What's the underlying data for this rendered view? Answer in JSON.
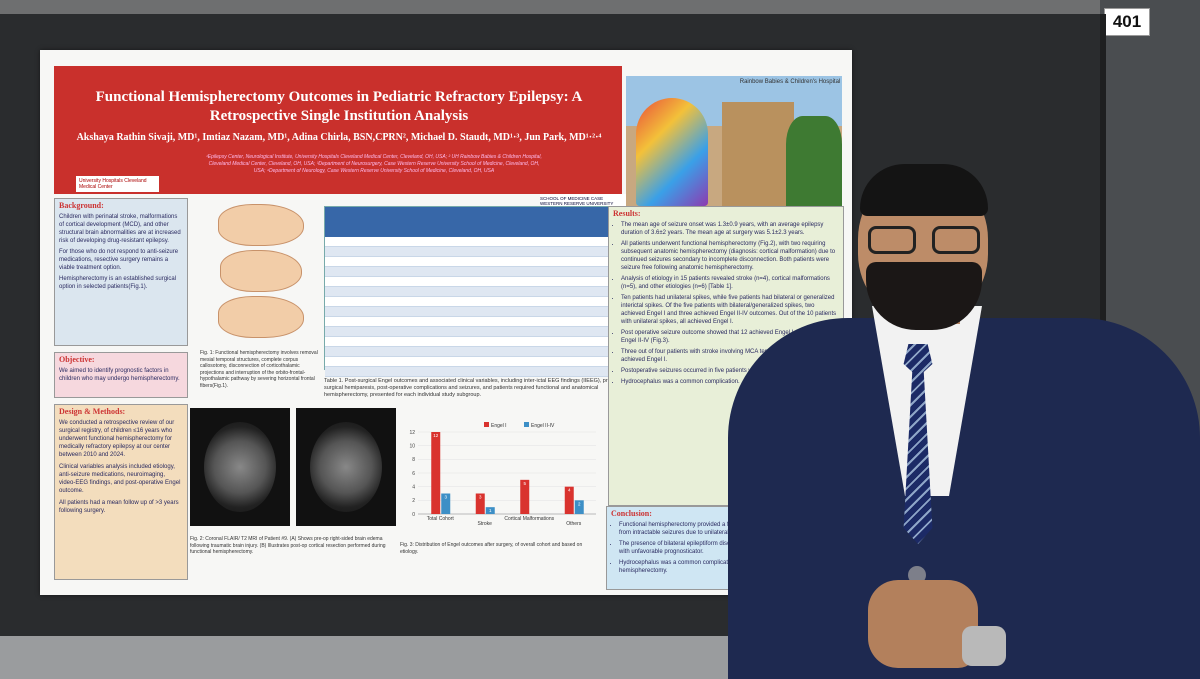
{
  "booth_number": "401",
  "poster": {
    "title": "Functional Hemispherectomy Outcomes in Pediatric Refractory Epilepsy: A Retrospective Single Institution Analysis",
    "authors": "Akshaya Rathin Sivaji, MD¹, Imtiaz Nazam, MD¹, Adina Chirla, BSN,CPRN², Michael D. Staudt, MD¹·³, Jun Park, MD¹·²·⁴",
    "affiliations": "¹Epilepsy Center, Neurological Institute, University Hospitals Cleveland Medical Center, Cleveland, OH, USA; ² UH Rainbow Babies & Children Hospital, Cleveland Medical Center, Cleveland, OH, USA; ³Department of Neurosurgery, Case Western Reserve University School of Medicine, Cleveland, OH, USA; ⁴Department of Neurology, Case Western Reserve University School of Medicine, Cleveland, OH, USA",
    "logo_left": "University Hospitals Cleveland Medical Center",
    "logo_right": "SCHOOL OF MEDICINE CASE WESTERN RESERVE UNIVERSITY",
    "hospital_logo": "Rainbow Babies & Children's Hospital",
    "background": {
      "heading": "Background:",
      "items": [
        "Children with perinatal stroke, malformations of cortical development (MCD), and other structural brain abnormalities are at increased risk of developing drug-resistant epilepsy.",
        "For those who do not respond to anti-seizure medications, resective surgery remains a viable treatment option.",
        "Hemispherectomy is an established surgical option in selected patients(Fig.1)."
      ]
    },
    "objective": {
      "heading": "Objective:",
      "items": [
        "We aimed to identify prognostic factors in children who may undergo hemispherectomy."
      ]
    },
    "design": {
      "heading": "Design & Methods:",
      "items": [
        "We conducted a retrospective review of our surgical registry, of children ≤16 years who underwent functional hemispherectomy for medically refractory epilepsy at our center between 2010 and 2024.",
        "Clinical variables analysis included etiology, anti-seizure medications, neuroimaging, video-EEG findings, and post-operative Engel outcome.",
        "All patients had a mean follow up of >3 years following surgery."
      ]
    },
    "fig1_caption": "Fig. 1: Functional hemispherectomy involves removal mesial temporal structures, complete corpus callosotomy, disconnection of corticothalamic projections and interruption of the orbito-frontal-hypothalamic pathway by severing horizontal frontal fibers(Fig.1).",
    "table_caption": "Table 1. Post-surgical Engel outcomes and associated clinical variables, including inter-ictal EEG findings (IIEEG), pre-surgical hemiparesis, post-operative complications and seizures, and patients required functional and anatomical hemispherectomy, presented for each individual study subgroup.",
    "fig2_caption": "Fig. 2: Coronal FLAIR/ T2 MRI of Patient #9. (A) Shows pre-op right-sided brain edema following traumatic brain injury. (B) Illustrates post-op cortical resection performed during functional hemispherectomy.",
    "fig3_caption": "Fig. 3: Distribution of Engel outcomes after surgery, of overall cohort and based on etiology.",
    "results": {
      "heading": "Results:",
      "items": [
        "The mean age of seizure onset was 1.3±0.9 years, with an average epilepsy duration of 3.6±2 years. The mean age at surgery was 5.1±2.3 years.",
        "All patients underwent functional hemispherectomy (Fig.2), with two requiring subsequent anatomic hemispherectomy (diagnosis: cortical malformation) due to continued seizures secondary to incomplete disconnection. Both patients were seizure free following anatomic hemispherectomy.",
        "Analysis of etiology in 15 patients revealed stroke (n=4), cortical malformations (n=5), and other etiologies (n=6) [Table 1].",
        "Ten patients had unilateral spikes, while five patients had bilateral or generalized interictal spikes. Of the five patients with bilateral/generalized spikes, two achieved Engel I and three achieved Engel II-IV outcomes. Out of the 10 patients with unilateral spikes, all achieved Engel I.",
        "Post operative seizure outcome showed that 12 achieved Engel I, while three had Engel II-IV (Fig.3).",
        "Three out of four patients with stroke involving MCA territory, of which three achieved Engel I.",
        "Postoperative seizures occurred in five patients within a week of surgery.",
        "Hydrocephalus was a common complication."
      ]
    },
    "conclusion": {
      "heading": "Conclusion:",
      "items": [
        "Functional hemispherectomy provided a favorable outcome in 9 out of 10 patients from intractable seizures due to unilateral lesions.",
        "The presence of bilateral epileptiform discharges on surgical evaluation associated with unfavorable prognosticator.",
        "Hydrocephalus was a common complication following functional and anatomic hemispherectomy."
      ]
    },
    "table": {
      "headers": [
        "Patient Groups",
        "Engel I",
        "Engel II-IV",
        "IIEG Unilateral Spikes",
        "IIEG Bilateral/Generalized",
        "Hemiparesis Prior to Surgery",
        "MRI Lesion",
        "Underwent Functional Hemispherectomy",
        "Required Anatomic Hemispherectomy",
        "Post-op 1st week seizure",
        "Post-op complication (VP shunt)"
      ],
      "rows": [
        "Stroke (n=4)",
        "Cortical malformations (n=5)",
        "Other Etiologies (n=6)",
        "Gliosis (1)",
        "Encephalomalacia (1)",
        "Traumatic Brain Injury (1)",
        "Genetic (1)",
        "CDKL5 mutation",
        "Unknown (1)",
        "Total Cohort (n=15)"
      ]
    }
  },
  "chart_data": {
    "type": "bar",
    "categories": [
      "Total Cohort",
      "Stroke",
      "Cortical Malformations",
      "Others"
    ],
    "series": [
      {
        "name": "Engel I",
        "values": [
          12,
          3,
          5,
          4
        ],
        "color": "#d9332e"
      },
      {
        "name": "Engel II-IV",
        "values": [
          3,
          1,
          0,
          2
        ],
        "color": "#3d8fc6"
      }
    ],
    "ylim": [
      0,
      12
    ],
    "yticks": [
      0,
      2,
      4,
      6,
      8,
      10,
      12
    ]
  }
}
